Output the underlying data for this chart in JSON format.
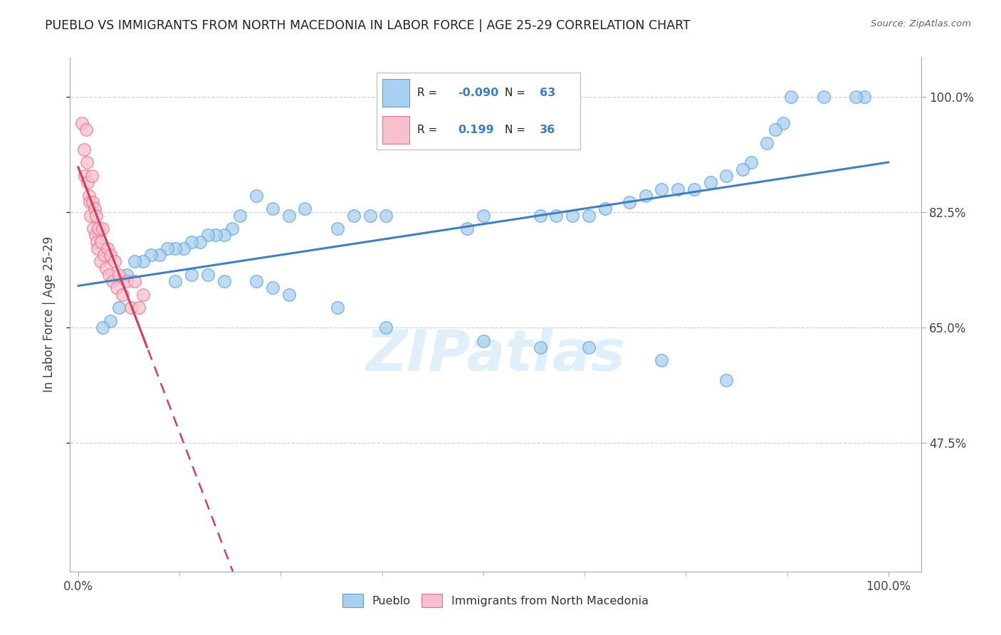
{
  "title": "PUEBLO VS IMMIGRANTS FROM NORTH MACEDONIA IN LABOR FORCE | AGE 25-29 CORRELATION CHART",
  "source": "Source: ZipAtlas.com",
  "ylabel": "In Labor Force | Age 25-29",
  "legend_labels": [
    "Pueblo",
    "Immigrants from North Macedonia"
  ],
  "r_pueblo": -0.09,
  "n_pueblo": 63,
  "r_immigrants": 0.199,
  "n_immigrants": 36,
  "ytick_labels": [
    "47.5%",
    "65.0%",
    "82.5%",
    "100.0%"
  ],
  "ytick_values": [
    0.475,
    0.65,
    0.825,
    1.0
  ],
  "ylim": [
    0.28,
    1.06
  ],
  "xlim": [
    -0.01,
    1.04
  ],
  "blue_color": "#A8D0F0",
  "pink_color": "#F8C0CC",
  "blue_edge_color": "#5BA3D9",
  "pink_edge_color": "#E87090",
  "blue_line_color": "#4080C0",
  "pink_line_color": "#D04060",
  "watermark": "ZIPatlas",
  "background_color": "#FFFFFF",
  "grid_color": "#CCCCCC",
  "pueblo_x": [
    0.97,
    0.96,
    0.92,
    0.88,
    0.87,
    0.86,
    0.85,
    0.83,
    0.82,
    0.8,
    0.78,
    0.76,
    0.74,
    0.72,
    0.7,
    0.68,
    0.65,
    0.63,
    0.61,
    0.59,
    0.57,
    0.5,
    0.48,
    0.38,
    0.36,
    0.34,
    0.32,
    0.28,
    0.26,
    0.24,
    0.22,
    0.2,
    0.19,
    0.18,
    0.17,
    0.16,
    0.15,
    0.14,
    0.13,
    0.12,
    0.11,
    0.1,
    0.09,
    0.08,
    0.07,
    0.06,
    0.05,
    0.04,
    0.03,
    0.12,
    0.14,
    0.16,
    0.18,
    0.22,
    0.24,
    0.26,
    0.32,
    0.38,
    0.5,
    0.57,
    0.63,
    0.72,
    0.8
  ],
  "pueblo_y": [
    1.0,
    1.0,
    1.0,
    1.0,
    0.96,
    0.95,
    0.93,
    0.9,
    0.89,
    0.88,
    0.87,
    0.86,
    0.86,
    0.86,
    0.85,
    0.84,
    0.83,
    0.82,
    0.82,
    0.82,
    0.82,
    0.82,
    0.8,
    0.82,
    0.82,
    0.82,
    0.8,
    0.83,
    0.82,
    0.83,
    0.85,
    0.82,
    0.8,
    0.79,
    0.79,
    0.79,
    0.78,
    0.78,
    0.77,
    0.77,
    0.77,
    0.76,
    0.76,
    0.75,
    0.75,
    0.73,
    0.68,
    0.66,
    0.65,
    0.72,
    0.73,
    0.73,
    0.72,
    0.72,
    0.71,
    0.7,
    0.68,
    0.65,
    0.63,
    0.62,
    0.62,
    0.6,
    0.57
  ],
  "immigrants_x": [
    0.005,
    0.007,
    0.008,
    0.01,
    0.011,
    0.012,
    0.013,
    0.014,
    0.015,
    0.017,
    0.018,
    0.019,
    0.02,
    0.021,
    0.022,
    0.023,
    0.024,
    0.025,
    0.027,
    0.028,
    0.03,
    0.032,
    0.034,
    0.036,
    0.038,
    0.04,
    0.042,
    0.045,
    0.048,
    0.05,
    0.055,
    0.06,
    0.065,
    0.07,
    0.075,
    0.08
  ],
  "immigrants_y": [
    0.96,
    0.92,
    0.88,
    0.95,
    0.9,
    0.87,
    0.85,
    0.84,
    0.82,
    0.88,
    0.84,
    0.8,
    0.83,
    0.79,
    0.82,
    0.78,
    0.77,
    0.8,
    0.75,
    0.78,
    0.8,
    0.76,
    0.74,
    0.77,
    0.73,
    0.76,
    0.72,
    0.75,
    0.71,
    0.73,
    0.7,
    0.72,
    0.68,
    0.72,
    0.68,
    0.7
  ]
}
